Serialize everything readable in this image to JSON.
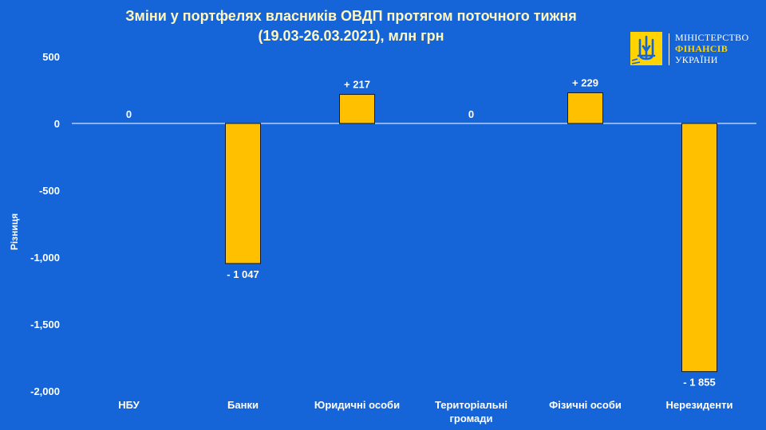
{
  "logo": {
    "line1": "МІНІСТЕРСТВО",
    "line2": "ФІНАНСІВ",
    "line3": "УКРАЇНИ"
  },
  "chart_data": {
    "type": "bar",
    "title_line1": "Зміни у портфелях власників ОВДП протягом поточного тижня",
    "title_line2": "(19.03-26.03.2021), млн грн",
    "ylabel": "Різниця",
    "xlabel": "",
    "ylim": [
      -2000,
      500
    ],
    "yticks": [
      500,
      0,
      -500,
      -1000,
      -1500,
      -2000
    ],
    "ytick_labels": [
      "500",
      "0",
      "-500",
      "-1,000",
      "-1,500",
      "-2,000"
    ],
    "categories": [
      "НБУ",
      "Банки",
      "Юридичні особи",
      "Територіальні громади",
      "Фізичні особи",
      "Нерезиденти"
    ],
    "category_lines": [
      [
        "НБУ"
      ],
      [
        "Банки"
      ],
      [
        "Юридичні особи"
      ],
      [
        "Територіальні",
        "громади"
      ],
      [
        "Фізичні особи"
      ],
      [
        "Нерезиденти"
      ]
    ],
    "values": [
      0,
      -1047,
      217,
      0,
      229,
      -1855
    ],
    "data_labels": [
      "0",
      "- 1 047",
      "+ 217",
      "0",
      "+ 229",
      "- 1 855"
    ],
    "grid": false,
    "legend": "none",
    "bar_color": "#ffc000",
    "background_color": "#1565d8"
  }
}
